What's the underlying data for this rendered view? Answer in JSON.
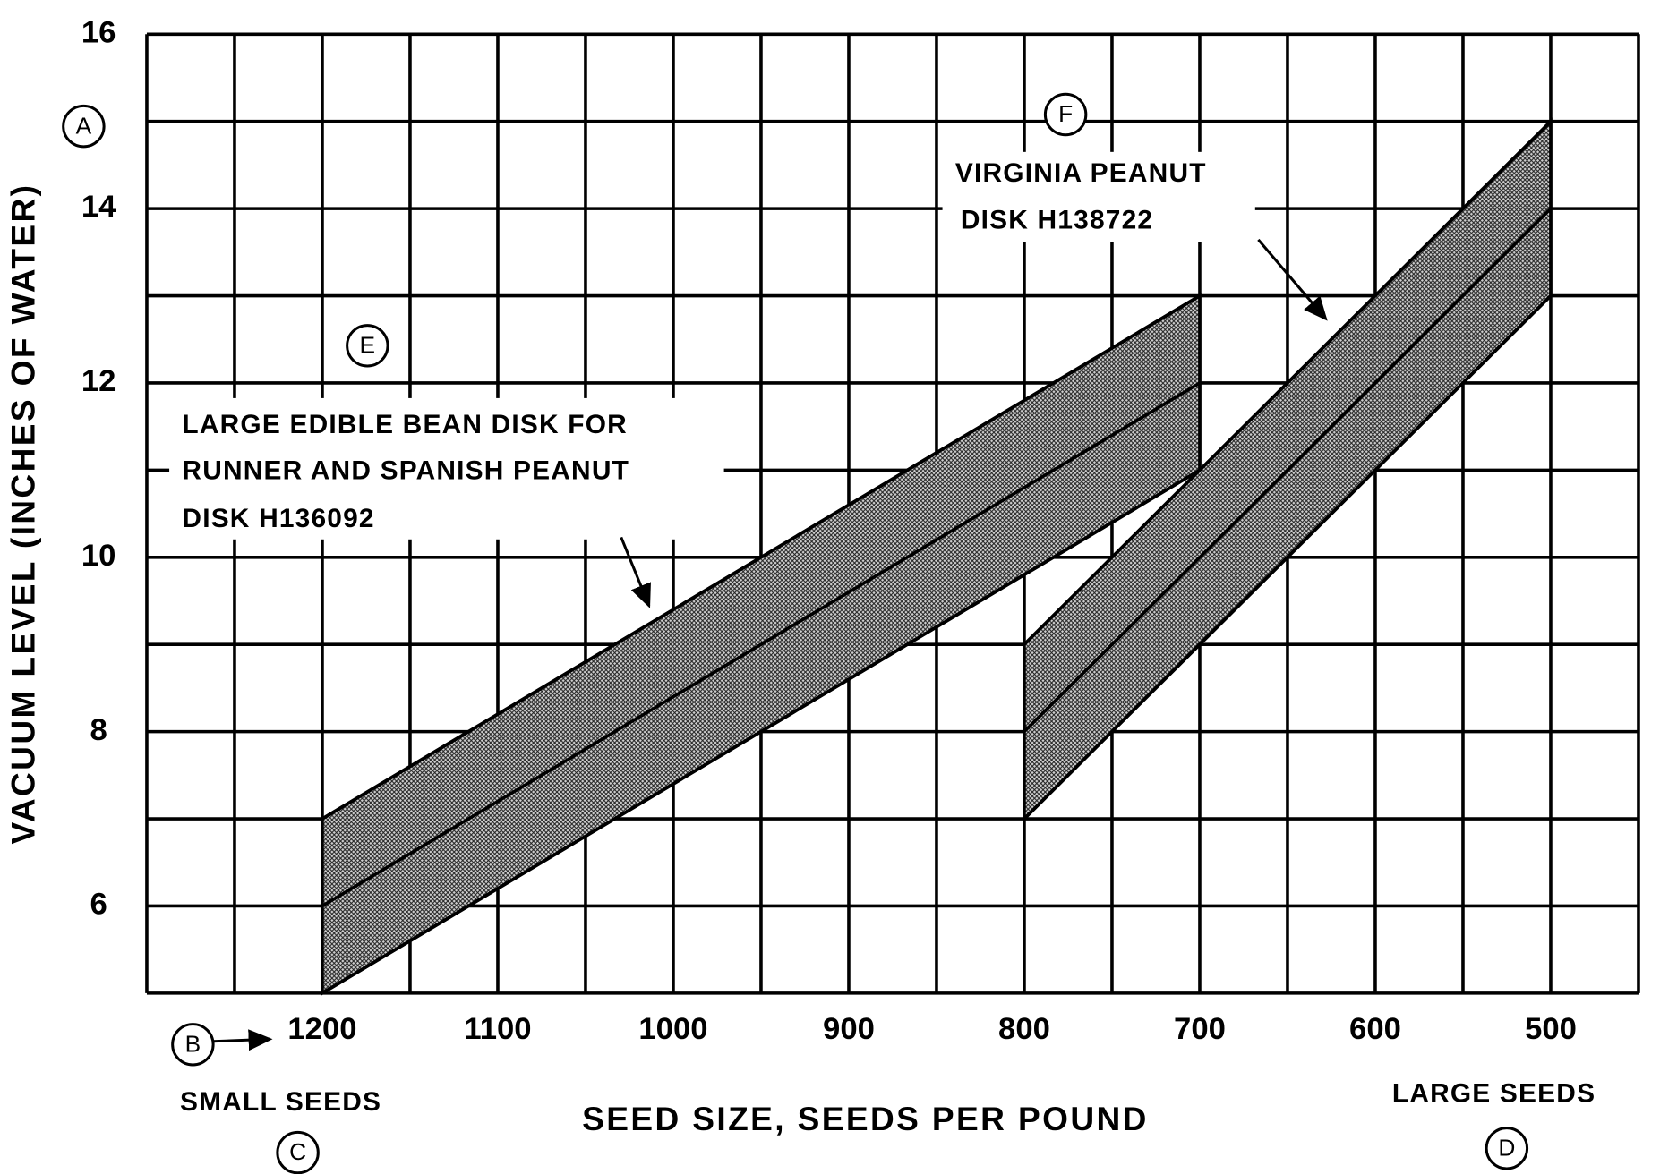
{
  "chart_data": {
    "type": "band",
    "xlabel": "SEED SIZE, SEEDS PER POUND",
    "ylabel": "VACUUM LEVEL (INCHES OF WATER)",
    "xlim": [
      1300,
      450
    ],
    "ylim": [
      5,
      16
    ],
    "xticks": [
      1200,
      1100,
      1000,
      900,
      800,
      700,
      600,
      500
    ],
    "yticks": [
      6,
      8,
      10,
      12,
      14,
      16
    ],
    "xgrid": [
      1300,
      1250,
      1200,
      1150,
      1100,
      1050,
      1000,
      950,
      900,
      850,
      800,
      750,
      700,
      650,
      600,
      550,
      500,
      450
    ],
    "ygrid": [
      5,
      6,
      7,
      8,
      9,
      10,
      11,
      12,
      13,
      14,
      15,
      16
    ],
    "bands": [
      {
        "x": [
          1200,
          700
        ],
        "upper": [
          7,
          13
        ],
        "middle": [
          6,
          12
        ],
        "lower": [
          5,
          11
        ]
      },
      {
        "x": [
          800,
          500
        ],
        "upper": [
          9,
          15
        ],
        "middle": [
          8,
          14
        ],
        "lower": [
          7,
          13
        ]
      }
    ],
    "markers": [
      "A",
      "B",
      "C",
      "D"
    ],
    "x_notes": [
      "SMALL SEEDS",
      "LARGE SEEDS"
    ],
    "annotations": [
      {
        "marker": "E",
        "lines": [
          "LARGE EDIBLE BEAN DISK FOR",
          "RUNNER AND SPANISH PEANUT",
          "DISK H136092"
        ]
      },
      {
        "marker": "F",
        "lines": [
          "VIRGINIA PEANUT",
          "DISK H138722"
        ]
      }
    ]
  }
}
